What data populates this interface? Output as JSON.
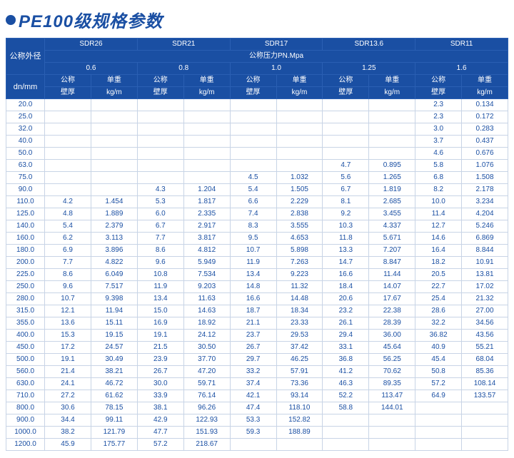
{
  "title": "PE100级规格参数",
  "header": {
    "corner_top": "公称外径",
    "corner_bottom": "dn/mm",
    "sdr_labels": [
      "SDR26",
      "SDR21",
      "SDR17",
      "SDR13.6",
      "SDR11"
    ],
    "pressure_row_label": "公称压力PN.Mpa",
    "pressures": [
      "0.6",
      "0.8",
      "1.0",
      "1.25",
      "1.6"
    ],
    "sub1": [
      "公称",
      "单重"
    ],
    "sub2": [
      "壁厚",
      "kg/m"
    ]
  },
  "rows": [
    {
      "dn": "20.0",
      "v": [
        "",
        "",
        "",
        "",
        "",
        "",
        "",
        "",
        "2.3",
        "0.134"
      ]
    },
    {
      "dn": "25.0",
      "v": [
        "",
        "",
        "",
        "",
        "",
        "",
        "",
        "",
        "2.3",
        "0.172"
      ]
    },
    {
      "dn": "32.0",
      "v": [
        "",
        "",
        "",
        "",
        "",
        "",
        "",
        "",
        "3.0",
        "0.283"
      ]
    },
    {
      "dn": "40.0",
      "v": [
        "",
        "",
        "",
        "",
        "",
        "",
        "",
        "",
        "3.7",
        "0.437"
      ]
    },
    {
      "dn": "50.0",
      "v": [
        "",
        "",
        "",
        "",
        "",
        "",
        "",
        "",
        "4.6",
        "0.676"
      ]
    },
    {
      "dn": "63.0",
      "v": [
        "",
        "",
        "",
        "",
        "",
        "",
        "4.7",
        "0.895",
        "5.8",
        "1.076"
      ]
    },
    {
      "dn": "75.0",
      "v": [
        "",
        "",
        "",
        "",
        "4.5",
        "1.032",
        "5.6",
        "1.265",
        "6.8",
        "1.508"
      ]
    },
    {
      "dn": "90.0",
      "v": [
        "",
        "",
        "4.3",
        "1.204",
        "5.4",
        "1.505",
        "6.7",
        "1.819",
        "8.2",
        "2.178"
      ]
    },
    {
      "dn": "110.0",
      "v": [
        "4.2",
        "1.454",
        "5.3",
        "1.817",
        "6.6",
        "2.229",
        "8.1",
        "2.685",
        "10.0",
        "3.234"
      ]
    },
    {
      "dn": "125.0",
      "v": [
        "4.8",
        "1.889",
        "6.0",
        "2.335",
        "7.4",
        "2.838",
        "9.2",
        "3.455",
        "11.4",
        "4.204"
      ]
    },
    {
      "dn": "140.0",
      "v": [
        "5.4",
        "2.379",
        "6.7",
        "2.917",
        "8.3",
        "3.555",
        "10.3",
        "4.337",
        "12.7",
        "5.246"
      ]
    },
    {
      "dn": "160.0",
      "v": [
        "6.2",
        "3.113",
        "7.7",
        "3.817",
        "9.5",
        "4.653",
        "11.8",
        "5.671",
        "14.6",
        "6.869"
      ]
    },
    {
      "dn": "180.0",
      "v": [
        "6.9",
        "3.896",
        "8.6",
        "4.812",
        "10.7",
        "5.898",
        "13.3",
        "7.207",
        "16.4",
        "8.844"
      ]
    },
    {
      "dn": "200.0",
      "v": [
        "7.7",
        "4.822",
        "9.6",
        "5.949",
        "11.9",
        "7.263",
        "14.7",
        "8.847",
        "18.2",
        "10.91"
      ]
    },
    {
      "dn": "225.0",
      "v": [
        "8.6",
        "6.049",
        "10.8",
        "7.534",
        "13.4",
        "9.223",
        "16.6",
        "11.44",
        "20.5",
        "13.81"
      ]
    },
    {
      "dn": "250.0",
      "v": [
        "9.6",
        "7.517",
        "11.9",
        "9.203",
        "14.8",
        "11.32",
        "18.4",
        "14.07",
        "22.7",
        "17.02"
      ]
    },
    {
      "dn": "280.0",
      "v": [
        "10.7",
        "9.398",
        "13.4",
        "11.63",
        "16.6",
        "14.48",
        "20.6",
        "17.67",
        "25.4",
        "21.32"
      ]
    },
    {
      "dn": "315.0",
      "v": [
        "12.1",
        "11.94",
        "15.0",
        "14.63",
        "18.7",
        "18.34",
        "23.2",
        "22.38",
        "28.6",
        "27.00"
      ]
    },
    {
      "dn": "355.0",
      "v": [
        "13.6",
        "15.11",
        "16.9",
        "18.92",
        "21.1",
        "23.33",
        "26.1",
        "28.39",
        "32.2",
        "34.56"
      ]
    },
    {
      "dn": "400.0",
      "v": [
        "15.3",
        "19.15",
        "19.1",
        "24.12",
        "23.7",
        "29.53",
        "29.4",
        "36.00",
        "36.82",
        "43.56"
      ]
    },
    {
      "dn": "450.0",
      "v": [
        "17.2",
        "24.57",
        "21.5",
        "30.50",
        "26.7",
        "37.42",
        "33.1",
        "45.64",
        "40.9",
        "55.21"
      ]
    },
    {
      "dn": "500.0",
      "v": [
        "19.1",
        "30.49",
        "23.9",
        "37.70",
        "29.7",
        "46.25",
        "36.8",
        "56.25",
        "45.4",
        "68.04"
      ]
    },
    {
      "dn": "560.0",
      "v": [
        "21.4",
        "38.21",
        "26.7",
        "47.20",
        "33.2",
        "57.91",
        "41.2",
        "70.62",
        "50.8",
        "85.36"
      ]
    },
    {
      "dn": "630.0",
      "v": [
        "24.1",
        "46.72",
        "30.0",
        "59.71",
        "37.4",
        "73.36",
        "46.3",
        "89.35",
        "57.2",
        "108.14"
      ]
    },
    {
      "dn": "710.0",
      "v": [
        "27.2",
        "61.62",
        "33.9",
        "76.14",
        "42.1",
        "93.14",
        "52.2",
        "113.47",
        "64.9",
        "133.57"
      ]
    },
    {
      "dn": "800.0",
      "v": [
        "30.6",
        "78.15",
        "38.1",
        "96.26",
        "47.4",
        "118.10",
        "58.8",
        "144.01",
        "",
        ""
      ]
    },
    {
      "dn": "900.0",
      "v": [
        "34.4",
        "99.11",
        "42.9",
        "122.93",
        "53.3",
        "152.82",
        "",
        "",
        "",
        ""
      ]
    },
    {
      "dn": "1000.0",
      "v": [
        "38.2",
        "121.79",
        "47.7",
        "151.93",
        "59.3",
        "188.89",
        "",
        "",
        "",
        ""
      ]
    },
    {
      "dn": "1200.0",
      "v": [
        "45.9",
        "175.77",
        "57.2",
        "218.67",
        "",
        "",
        "",
        "",
        "",
        ""
      ]
    }
  ],
  "colors": {
    "brand": "#1a4fa3",
    "header_border": "#2a5fb3",
    "cell_border": "#c8d4e6",
    "background": "#ffffff"
  }
}
